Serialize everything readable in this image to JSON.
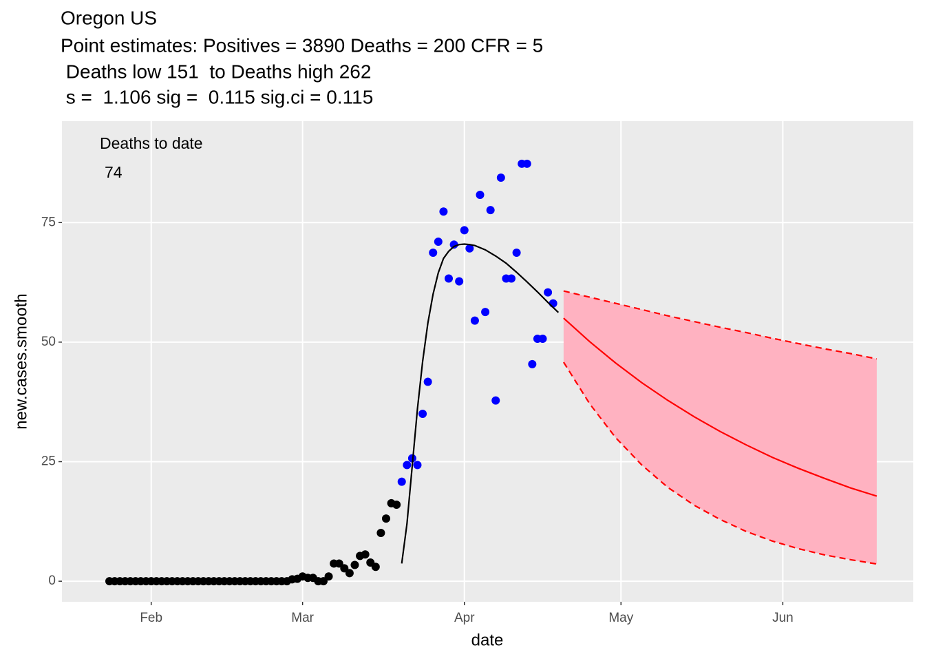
{
  "chart_data": {
    "type": "scatter",
    "title": "Oregon US",
    "subtitle": [
      "Point estimates: Positives = 3890 Deaths = 200 CFR = 5",
      " Deaths low 151  to Deaths high 262",
      " s =  1.106 sig =  0.115 sig.ci = 0.115"
    ],
    "x_label": "date",
    "y_label": "new.cases.smooth",
    "annotation": {
      "label": "Deaths to date",
      "value": 74
    },
    "xlim": [
      14.9,
      178
    ],
    "ylim": [
      -4.3,
      96.2
    ],
    "xticks": [
      {
        "value": 32,
        "label": "Feb"
      },
      {
        "value": 61,
        "label": "Mar"
      },
      {
        "value": 92,
        "label": "Apr"
      },
      {
        "value": 122,
        "label": "May"
      },
      {
        "value": 153,
        "label": "Jun"
      }
    ],
    "yticks": [
      0,
      25,
      50,
      75
    ],
    "grid": true,
    "series": [
      {
        "type": "scatter",
        "color": "#000000",
        "x": [
          24,
          25,
          26,
          27,
          28,
          29,
          30,
          31,
          32,
          33,
          34,
          35,
          36,
          37,
          38,
          39,
          40,
          41,
          42,
          43,
          44,
          45,
          46,
          47,
          48,
          49,
          50,
          51,
          52,
          53,
          54,
          55,
          56,
          57,
          58,
          59,
          60,
          61,
          62,
          63,
          64,
          65,
          66,
          67,
          68,
          69,
          70,
          71,
          72,
          73,
          74,
          75,
          76,
          77,
          78,
          79
        ],
        "values": [
          0,
          0,
          0,
          0,
          0,
          0,
          0,
          0,
          0,
          0,
          0,
          0,
          0,
          0,
          0,
          0,
          0,
          0,
          0,
          0,
          0,
          0,
          0,
          0,
          0,
          0,
          0,
          0,
          0,
          0,
          0,
          0,
          0,
          0,
          0,
          0.4,
          0.5,
          1.0,
          0.7,
          0.7,
          0,
          0,
          1.0,
          3.7,
          3.7,
          2.7,
          1.7,
          3.4,
          5.3,
          5.6,
          3.9,
          3.0,
          10.1,
          13.1,
          16.3,
          16.0
        ]
      },
      {
        "type": "scatter",
        "color": "#0000ff",
        "x": [
          80,
          81,
          82,
          83,
          84,
          85,
          86,
          87,
          88,
          89,
          90,
          91,
          92,
          93,
          94,
          95,
          96,
          97,
          98,
          99,
          100,
          101,
          102,
          103,
          104,
          105,
          106,
          107,
          108,
          109
        ],
        "values": [
          20.8,
          24.3,
          25.7,
          24.3,
          35,
          41.7,
          68.7,
          71,
          77.3,
          63.3,
          70.4,
          62.7,
          73.4,
          69.6,
          54.5,
          80.8,
          56.3,
          77.6,
          37.8,
          84.4,
          63.3,
          63.3,
          68.7,
          87.3,
          87.3,
          45.4,
          50.7,
          50.7,
          60.4,
          58.1
        ]
      },
      {
        "type": "line",
        "color": "#000000",
        "x": [
          80,
          81,
          82,
          83,
          84,
          85,
          86,
          87,
          88,
          89,
          90,
          91,
          92,
          93,
          94,
          96,
          98,
          100,
          102,
          104,
          106,
          108,
          110
        ],
        "values": [
          3.7,
          12,
          24,
          36,
          46,
          54,
          60,
          64.5,
          67.5,
          69,
          70,
          70.4,
          70.5,
          70.4,
          70.2,
          69.3,
          68,
          66.5,
          64.6,
          62.6,
          60.5,
          58.3,
          56.2
        ]
      },
      {
        "type": "band",
        "color": "#ff0000",
        "fill": "#ffb2c1",
        "x": [
          111,
          116,
          121,
          126,
          131,
          136,
          141,
          146,
          151,
          156,
          161,
          166,
          171
        ],
        "values": [
          55,
          50.1,
          45.6,
          41.5,
          37.8,
          34.4,
          31.3,
          28.5,
          25.9,
          23.6,
          21.5,
          19.5,
          17.8
        ],
        "upper": [
          60.7,
          59.4,
          58.1,
          56.8,
          55.5,
          54.3,
          53.1,
          52.0,
          50.8,
          49.7,
          48.6,
          47.6,
          46.5
        ],
        "lower": [
          45.8,
          37.1,
          30.0,
          24.3,
          19.6,
          15.9,
          12.9,
          10.4,
          8.4,
          6.8,
          5.5,
          4.5,
          3.6
        ]
      }
    ]
  }
}
